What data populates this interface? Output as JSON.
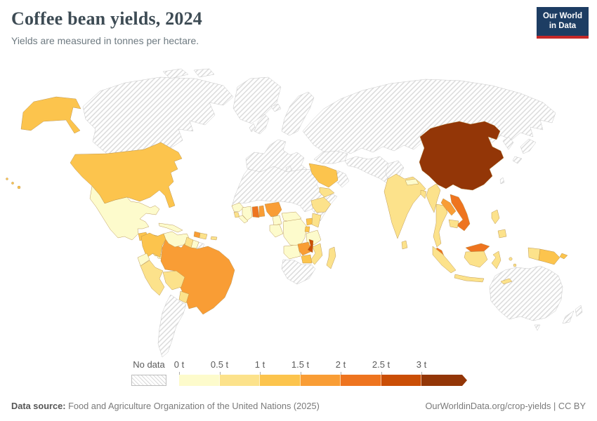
{
  "header": {
    "title": "Coffee bean yields, 2024",
    "subtitle": "Yields are measured in tonnes per hectare."
  },
  "logo": {
    "line1": "Our World",
    "line2": "in Data",
    "bg_color": "#1d3d63",
    "accent_color": "#c52828"
  },
  "footer": {
    "source_label": "Data source:",
    "source_text": " Food and Agriculture Organization of the United Nations (2025)",
    "link_text": "OurWorldinData.org/crop-yields | CC BY"
  },
  "chart_data": {
    "type": "choropleth",
    "title": "Coffee bean yields, 2024",
    "unit": "tonnes per hectare",
    "year": 2024,
    "legend": {
      "position": "bottom",
      "no_data_label": "No data",
      "no_data_pattern": "diagonal-hatch",
      "tick_labels": [
        "0 t",
        "0.5 t",
        "1 t",
        "1.5 t",
        "2 t",
        "2.5 t",
        "3 t"
      ],
      "bin_labels": [
        "0–0.5 t",
        "0.5–1 t",
        "1–1.5 t",
        "1.5–2 t",
        "2–2.5 t",
        "2.5–3 t",
        "3+ t"
      ],
      "bin_colors": [
        "#fdfbcc",
        "#fce28b",
        "#fcc44d",
        "#f99d35",
        "#ee741f",
        "#ca4e06",
        "#933607"
      ]
    },
    "regions": {
      "united-states": {
        "label": "United States",
        "bin": 2
      },
      "mexico": {
        "label": "Mexico",
        "bin": 0
      },
      "guatemala": {
        "label": "Guatemala",
        "bin": 2
      },
      "honduras": {
        "label": "Honduras",
        "bin": 1
      },
      "nicaragua": {
        "label": "Nicaragua",
        "bin": 2
      },
      "costa-rica": {
        "label": "Costa Rica",
        "bin": 1
      },
      "panama": {
        "label": "Panama",
        "bin": 0
      },
      "cuba": {
        "label": "Cuba",
        "bin": 0
      },
      "jamaica": {
        "label": "Jamaica",
        "bin": 2
      },
      "haiti": {
        "label": "Haiti",
        "bin": 3
      },
      "dominican-republic": {
        "label": "Dominican Republic",
        "bin": 1
      },
      "puerto-rico": {
        "label": "Puerto Rico",
        "bin": 1
      },
      "colombia": {
        "label": "Colombia",
        "bin": 2
      },
      "venezuela": {
        "label": "Venezuela",
        "bin": 0
      },
      "guyana": {
        "label": "Guyana",
        "bin": 1
      },
      "suriname": {
        "label": "Suriname",
        "bin": 0
      },
      "ecuador": {
        "label": "Ecuador",
        "bin": 0
      },
      "peru": {
        "label": "Peru",
        "bin": 1
      },
      "bolivia": {
        "label": "Bolivia",
        "bin": 1
      },
      "brazil": {
        "label": "Brazil",
        "bin": 3
      },
      "paraguay": {
        "label": "Paraguay",
        "bin": 1
      },
      "guinea": {
        "label": "Guinea",
        "bin": 0
      },
      "sierra-leone": {
        "label": "Sierra Leone",
        "bin": 1
      },
      "liberia": {
        "label": "Liberia",
        "bin": 0
      },
      "cote-divoire": {
        "label": "Cote d'Ivoire",
        "bin": 0
      },
      "ghana": {
        "label": "Ghana",
        "bin": 4
      },
      "togo": {
        "label": "Togo",
        "bin": 3
      },
      "nigeria": {
        "label": "Nigeria",
        "bin": 3
      },
      "cameroon": {
        "label": "Cameroon",
        "bin": 0
      },
      "central-african-republic": {
        "label": "Central African Republic",
        "bin": 0
      },
      "congo": {
        "label": "Congo",
        "bin": 0
      },
      "dr-congo": {
        "label": "Democratic Republic of Congo",
        "bin": 0
      },
      "uganda": {
        "label": "Uganda",
        "bin": 2
      },
      "kenya": {
        "label": "Kenya",
        "bin": 1
      },
      "ethiopia": {
        "label": "Ethiopia",
        "bin": 1
      },
      "rwanda": {
        "label": "Rwanda",
        "bin": 2
      },
      "tanzania": {
        "label": "Tanzania",
        "bin": 0
      },
      "angola": {
        "label": "Angola",
        "bin": 0
      },
      "zambia": {
        "label": "Zambia",
        "bin": 3
      },
      "malawi": {
        "label": "Malawi",
        "bin": 5
      },
      "zimbabwe": {
        "label": "Zimbabwe",
        "bin": 2
      },
      "mozambique": {
        "label": "Mozambique",
        "bin": 1
      },
      "madagascar": {
        "label": "Madagascar",
        "bin": 1
      },
      "saudi-arabia": {
        "label": "Saudi Arabia",
        "bin": 2
      },
      "yemen": {
        "label": "Yemen",
        "bin": 1
      },
      "india": {
        "label": "India",
        "bin": 1
      },
      "nepal": {
        "label": "Nepal",
        "bin": 0
      },
      "bangladesh": {
        "label": "Bangladesh",
        "bin": 1
      },
      "sri-lanka": {
        "label": "Sri Lanka",
        "bin": 1
      },
      "myanmar": {
        "label": "Myanmar",
        "bin": 1
      },
      "thailand": {
        "label": "Thailand",
        "bin": 1
      },
      "laos": {
        "label": "Laos",
        "bin": 3
      },
      "vietnam": {
        "label": "Vietnam",
        "bin": 4
      },
      "cambodia": {
        "label": "Cambodia",
        "bin": 1
      },
      "china": {
        "label": "China",
        "bin": 6
      },
      "malaysia": {
        "label": "Malaysia",
        "bin": 4
      },
      "indonesia": {
        "label": "Indonesia",
        "bin": 1
      },
      "philippines": {
        "label": "Philippines",
        "bin": 1
      },
      "papua-new-guinea": {
        "label": "Papua New Guinea",
        "bin": 2
      },
      "timor-leste": {
        "label": "Timor",
        "bin": 1
      }
    },
    "no_data_regions": [
      "Canada",
      "Greenland",
      "Iceland",
      "Europe",
      "Russia",
      "Turkey",
      "Iran",
      "Pakistan",
      "Oman",
      "North Africa",
      "South Africa",
      "Argentina",
      "Chile",
      "French Guiana",
      "Japan",
      "South Korea",
      "Australia",
      "New Zealand"
    ]
  }
}
